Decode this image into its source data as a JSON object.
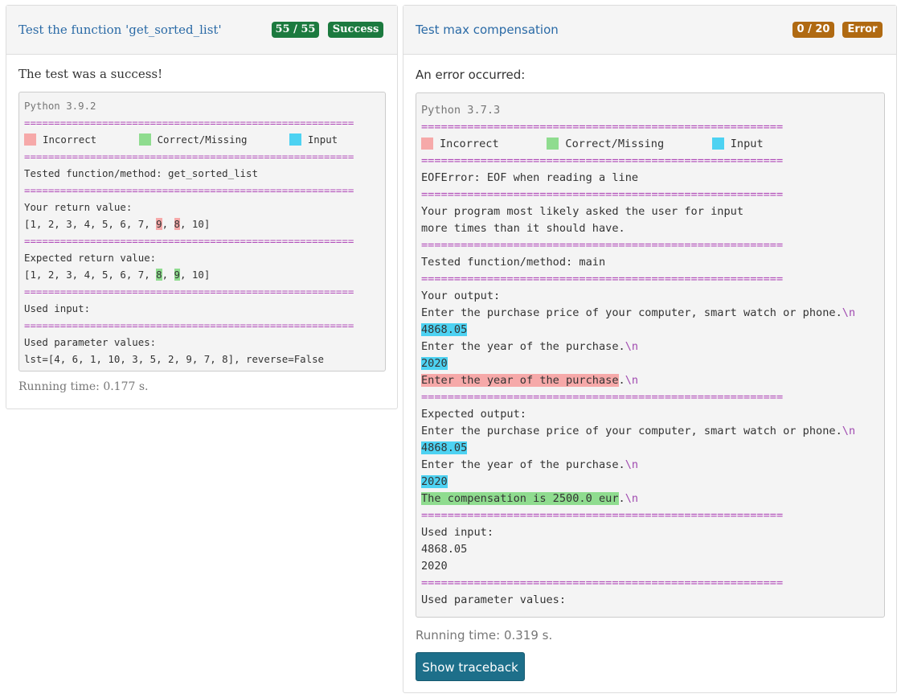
{
  "panels": [
    {
      "title": "Test the function 'get_sorted_list'",
      "score": "55 / 55",
      "status": "Success",
      "message": "The test was a success!",
      "code": {
        "lines": [
          [
            {
              "text": "Python 3.9.2",
              "color": "#777777"
            }
          ],
          [
            {
              "text": "=======================================================",
              "color": "#b04ab8"
            }
          ],
          {
            "legend": [
              {
                "label": "Incorrect",
                "color": "#f6a9a9"
              },
              {
                "label": "Correct/Missing",
                "color": "#8fdc8f"
              },
              {
                "label": "Input",
                "color": "#4dd2f2"
              }
            ]
          },
          [
            {
              "text": "=======================================================",
              "color": "#b04ab8"
            }
          ],
          [
            {
              "text": "Tested function/method: get_sorted_list"
            }
          ],
          [
            {
              "text": "=======================================================",
              "color": "#b04ab8"
            }
          ],
          [
            {
              "text": "Your return value:"
            }
          ],
          [
            {
              "text": "[1, 2, 3, 4, 5, 6, 7, "
            },
            {
              "text": "9",
              "highlight": "#f6a9a9"
            },
            {
              "text": ", "
            },
            {
              "text": "8",
              "highlight": "#f6a9a9"
            },
            {
              "text": ", 10]"
            }
          ],
          [
            {
              "text": "=======================================================",
              "color": "#b04ab8"
            }
          ],
          [
            {
              "text": "Expected return value:"
            }
          ],
          [
            {
              "text": "[1, 2, 3, 4, 5, 6, 7, "
            },
            {
              "text": "8",
              "highlight": "#8fdc8f"
            },
            {
              "text": ", "
            },
            {
              "text": "9",
              "highlight": "#8fdc8f"
            },
            {
              "text": ", 10]"
            }
          ],
          [
            {
              "text": "=======================================================",
              "color": "#b04ab8"
            }
          ],
          [
            {
              "text": "Used input:"
            }
          ],
          [
            {
              "text": "=======================================================",
              "color": "#b04ab8"
            }
          ],
          [
            {
              "text": "Used parameter values:"
            }
          ],
          [
            {
              "text": "lst=[4, 6, 1, 10, 3, 5, 2, 9, 7, 8], reverse=False"
            }
          ]
        ]
      },
      "running_time": "Running time: 0.177 s."
    },
    {
      "title": "Test max compensation",
      "score": "0 / 20",
      "status": "Error",
      "message": "An error occurred:",
      "code": {
        "lines": [
          [
            {
              "text": "Python 3.7.3",
              "color": "#777777"
            }
          ],
          [
            {
              "text": "=======================================================",
              "color": "#b04ab8"
            }
          ],
          {
            "legend": [
              {
                "label": "Incorrect",
                "color": "#f6a9a9"
              },
              {
                "label": "Correct/Missing",
                "color": "#8fdc8f"
              },
              {
                "label": "Input",
                "color": "#4dd2f2"
              }
            ]
          },
          [
            {
              "text": "=======================================================",
              "color": "#b04ab8"
            }
          ],
          [
            {
              "text": "EOFError: EOF when reading a line"
            }
          ],
          [
            {
              "text": "=======================================================",
              "color": "#b04ab8"
            }
          ],
          [
            {
              "text": "Your program most likely asked the user for input"
            }
          ],
          [
            {
              "text": "more times than it should have."
            }
          ],
          [
            {
              "text": "=======================================================",
              "color": "#b04ab8"
            }
          ],
          [
            {
              "text": "Tested function/method: main"
            }
          ],
          [
            {
              "text": "=======================================================",
              "color": "#b04ab8"
            }
          ],
          [
            {
              "text": "Your output:"
            }
          ],
          [
            {
              "text": "Enter the purchase price of your computer, smart watch or phone."
            },
            {
              "text": "\\n",
              "color": "#a04ab0"
            }
          ],
          [
            {
              "text": "4868.05",
              "highlight": "#4dd2f2"
            }
          ],
          [
            {
              "text": "Enter the year of the purchase."
            },
            {
              "text": "\\n",
              "color": "#a04ab0"
            }
          ],
          [
            {
              "text": "2020",
              "highlight": "#4dd2f2"
            }
          ],
          [
            {
              "text": "Enter the year of the purchase",
              "highlight": "#f6a9a9"
            },
            {
              "text": "."
            },
            {
              "text": "\\n",
              "color": "#a04ab0"
            }
          ],
          [
            {
              "text": "=======================================================",
              "color": "#b04ab8"
            }
          ],
          [
            {
              "text": "Expected output:"
            }
          ],
          [
            {
              "text": "Enter the purchase price of your computer, smart watch or phone."
            },
            {
              "text": "\\n",
              "color": "#a04ab0"
            }
          ],
          [
            {
              "text": "4868.05",
              "highlight": "#4dd2f2"
            }
          ],
          [
            {
              "text": "Enter the year of the purchase."
            },
            {
              "text": "\\n",
              "color": "#a04ab0"
            }
          ],
          [
            {
              "text": "2020",
              "highlight": "#4dd2f2"
            }
          ],
          [
            {
              "text": "The compensation is 2500.0 eur",
              "highlight": "#8fdc8f"
            },
            {
              "text": "."
            },
            {
              "text": "\\n",
              "color": "#a04ab0"
            }
          ],
          [
            {
              "text": "=======================================================",
              "color": "#b04ab8"
            }
          ],
          [
            {
              "text": "Used input:"
            }
          ],
          [
            {
              "text": "4868.05"
            }
          ],
          [
            {
              "text": "2020"
            }
          ],
          [
            {
              "text": "=======================================================",
              "color": "#b04ab8"
            }
          ],
          [
            {
              "text": "Used parameter values:"
            }
          ]
        ]
      },
      "running_time": "Running time: 0.319 s.",
      "button": "Show traceback"
    }
  ]
}
